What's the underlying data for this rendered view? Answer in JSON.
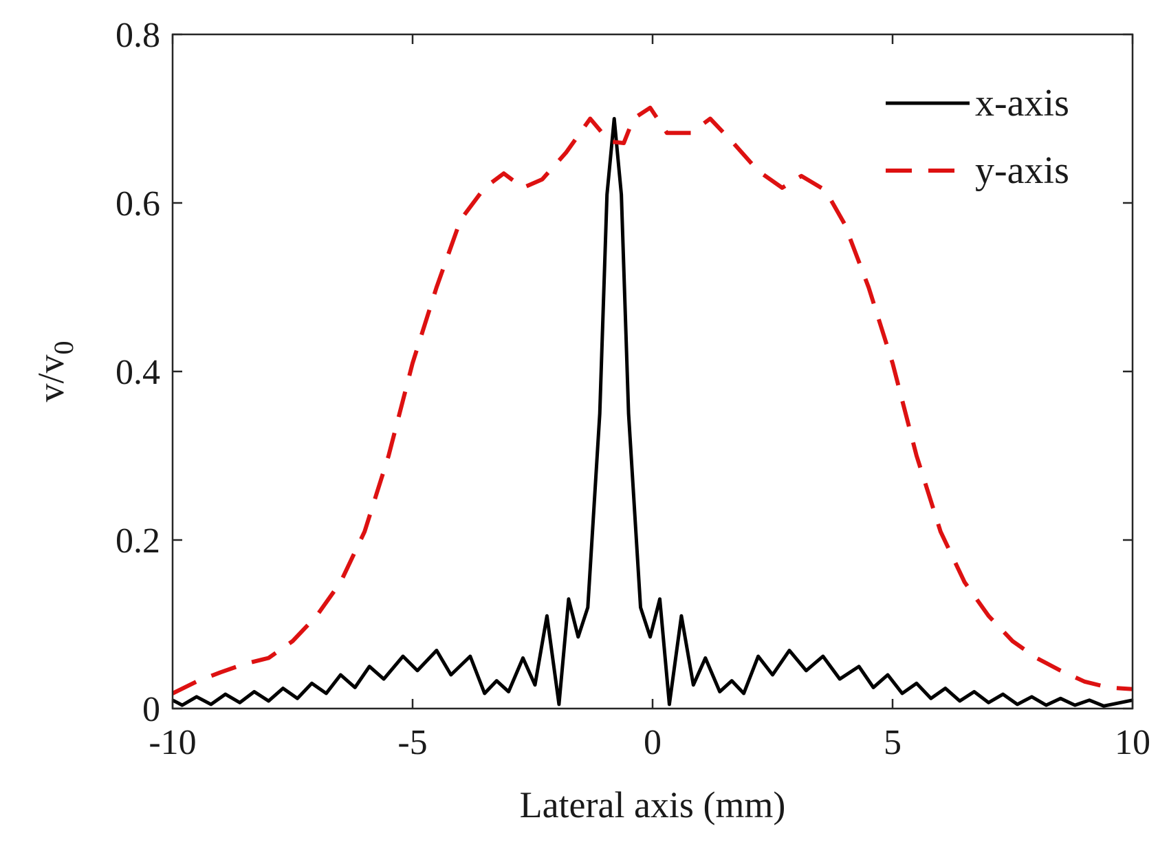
{
  "chart_data": {
    "type": "line",
    "title": "",
    "xlabel": "Lateral axis (mm)",
    "ylabel": {
      "main": "v/v",
      "sub": "0"
    },
    "xlim": [
      -10,
      10
    ],
    "ylim": [
      0,
      0.8
    ],
    "xticks": [
      -10,
      -5,
      0,
      5,
      10
    ],
    "xtick_labels": [
      "-10",
      "-5",
      "0",
      "5",
      "10"
    ],
    "yticks": [
      0,
      0.2,
      0.4,
      0.6,
      0.8
    ],
    "ytick_labels": [
      "0",
      "0.2",
      "0.4",
      "0.6",
      "0.8"
    ],
    "grid": false,
    "legend_position": "top-right",
    "series": [
      {
        "name": "x-axis",
        "color": "#000000",
        "style": "solid",
        "points": [
          [
            -10,
            0.01
          ],
          [
            -9.8,
            0.004
          ],
          [
            -9.5,
            0.014
          ],
          [
            -9.2,
            0.005
          ],
          [
            -8.9,
            0.017
          ],
          [
            -8.6,
            0.007
          ],
          [
            -8.3,
            0.02
          ],
          [
            -8.0,
            0.009
          ],
          [
            -7.7,
            0.024
          ],
          [
            -7.4,
            0.012
          ],
          [
            -7.1,
            0.03
          ],
          [
            -6.8,
            0.018
          ],
          [
            -6.5,
            0.04
          ],
          [
            -6.2,
            0.025
          ],
          [
            -5.9,
            0.05
          ],
          [
            -5.6,
            0.035
          ],
          [
            -5.2,
            0.062
          ],
          [
            -4.9,
            0.045
          ],
          [
            -4.5,
            0.069
          ],
          [
            -4.2,
            0.04
          ],
          [
            -3.8,
            0.062
          ],
          [
            -3.5,
            0.018
          ],
          [
            -3.25,
            0.033
          ],
          [
            -3.0,
            0.02
          ],
          [
            -2.7,
            0.06
          ],
          [
            -2.45,
            0.028
          ],
          [
            -2.2,
            0.11
          ],
          [
            -1.95,
            0.005
          ],
          [
            -1.75,
            0.13
          ],
          [
            -1.55,
            0.085
          ],
          [
            -1.35,
            0.12
          ],
          [
            -1.1,
            0.35
          ],
          [
            -0.95,
            0.61
          ],
          [
            -0.8,
            0.7
          ],
          [
            -0.65,
            0.61
          ],
          [
            -0.5,
            0.35
          ],
          [
            -0.25,
            0.12
          ],
          [
            -0.05,
            0.085
          ],
          [
            0.15,
            0.13
          ],
          [
            0.35,
            0.005
          ],
          [
            0.6,
            0.11
          ],
          [
            0.85,
            0.028
          ],
          [
            1.1,
            0.06
          ],
          [
            1.4,
            0.02
          ],
          [
            1.65,
            0.033
          ],
          [
            1.9,
            0.018
          ],
          [
            2.2,
            0.062
          ],
          [
            2.5,
            0.04
          ],
          [
            2.85,
            0.069
          ],
          [
            3.2,
            0.045
          ],
          [
            3.55,
            0.062
          ],
          [
            3.9,
            0.035
          ],
          [
            4.3,
            0.05
          ],
          [
            4.6,
            0.025
          ],
          [
            4.9,
            0.04
          ],
          [
            5.2,
            0.018
          ],
          [
            5.5,
            0.03
          ],
          [
            5.8,
            0.012
          ],
          [
            6.1,
            0.024
          ],
          [
            6.4,
            0.009
          ],
          [
            6.7,
            0.02
          ],
          [
            7.0,
            0.007
          ],
          [
            7.3,
            0.017
          ],
          [
            7.6,
            0.005
          ],
          [
            7.9,
            0.014
          ],
          [
            8.2,
            0.004
          ],
          [
            8.5,
            0.012
          ],
          [
            8.8,
            0.004
          ],
          [
            9.1,
            0.01
          ],
          [
            9.4,
            0.003
          ],
          [
            10,
            0.01
          ]
        ]
      },
      {
        "name": "y-axis",
        "color": "#dd1111",
        "style": "dashed",
        "points": [
          [
            -10,
            0.018
          ],
          [
            -9.5,
            0.032
          ],
          [
            -9.0,
            0.043
          ],
          [
            -8.5,
            0.053
          ],
          [
            -8.0,
            0.06
          ],
          [
            -7.5,
            0.08
          ],
          [
            -7.0,
            0.11
          ],
          [
            -6.5,
            0.15
          ],
          [
            -6.0,
            0.21
          ],
          [
            -5.5,
            0.3
          ],
          [
            -5.0,
            0.41
          ],
          [
            -4.5,
            0.5
          ],
          [
            -4.0,
            0.58
          ],
          [
            -3.5,
            0.618
          ],
          [
            -3.1,
            0.635
          ],
          [
            -2.7,
            0.618
          ],
          [
            -2.3,
            0.628
          ],
          [
            -1.8,
            0.66
          ],
          [
            -1.3,
            0.7
          ],
          [
            -0.9,
            0.673
          ],
          [
            -0.6,
            0.671
          ],
          [
            -0.4,
            0.7
          ],
          [
            -0.05,
            0.713
          ],
          [
            0.3,
            0.683
          ],
          [
            0.8,
            0.683
          ],
          [
            1.2,
            0.7
          ],
          [
            1.7,
            0.67
          ],
          [
            2.2,
            0.638
          ],
          [
            2.7,
            0.618
          ],
          [
            3.1,
            0.632
          ],
          [
            3.6,
            0.615
          ],
          [
            4.0,
            0.575
          ],
          [
            4.5,
            0.5
          ],
          [
            5.0,
            0.41
          ],
          [
            5.5,
            0.3
          ],
          [
            6.0,
            0.21
          ],
          [
            6.5,
            0.15
          ],
          [
            7.0,
            0.11
          ],
          [
            7.5,
            0.08
          ],
          [
            8.0,
            0.06
          ],
          [
            8.5,
            0.045
          ],
          [
            9.0,
            0.032
          ],
          [
            9.5,
            0.025
          ],
          [
            10,
            0.023
          ]
        ]
      }
    ]
  }
}
